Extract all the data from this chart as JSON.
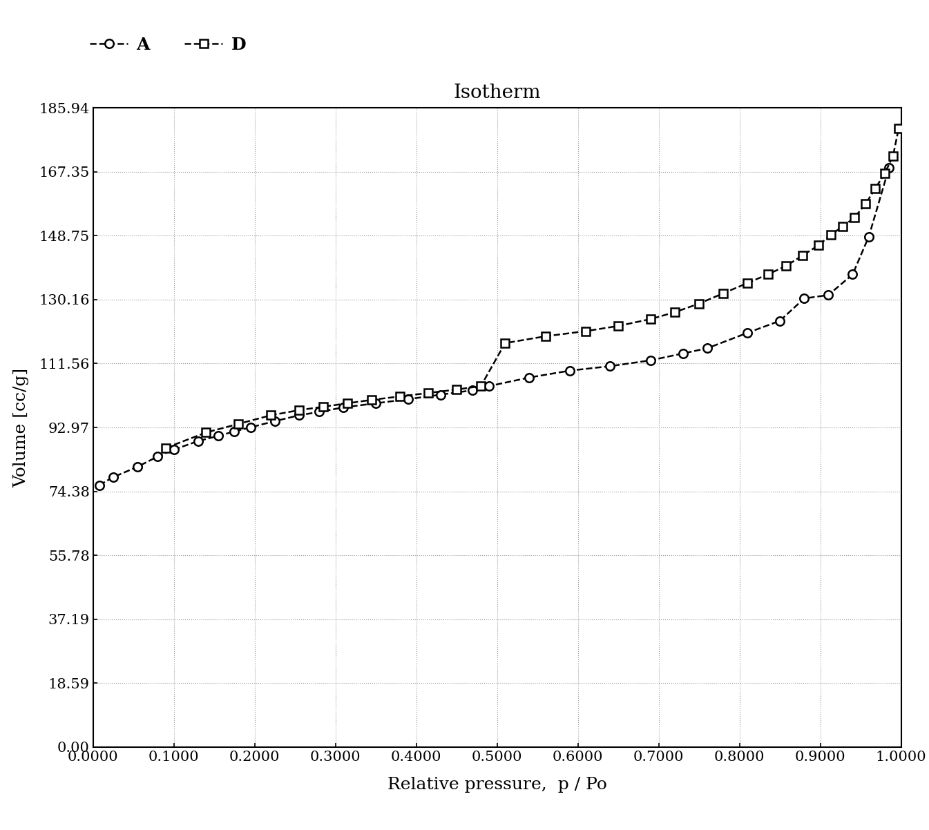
{
  "title": "Isotherm",
  "xlabel": "Relative pressure,  p / Po",
  "ylabel": "Volume [cc/g]",
  "yticks": [
    0.0,
    18.59,
    37.19,
    55.78,
    74.38,
    92.97,
    111.56,
    130.16,
    148.75,
    167.35,
    185.94
  ],
  "xticks": [
    0.0,
    0.1,
    0.2,
    0.3,
    0.4,
    0.5,
    0.6,
    0.7,
    0.8,
    0.9,
    1.0
  ],
  "xlim": [
    0.0,
    1.0
  ],
  "ylim": [
    0.0,
    185.94
  ],
  "adsorption_x": [
    0.008,
    0.025,
    0.055,
    0.08,
    0.1,
    0.13,
    0.155,
    0.175,
    0.195,
    0.225,
    0.255,
    0.28,
    0.31,
    0.35,
    0.39,
    0.43,
    0.47,
    0.49,
    0.54,
    0.59,
    0.64,
    0.69,
    0.73,
    0.76,
    0.81,
    0.85,
    0.88,
    0.91,
    0.94,
    0.96,
    0.985
  ],
  "adsorption_y": [
    76.2,
    78.5,
    81.5,
    84.5,
    86.5,
    89.0,
    90.5,
    91.8,
    93.0,
    94.8,
    96.5,
    97.5,
    98.8,
    100.0,
    101.2,
    102.5,
    103.8,
    105.0,
    107.5,
    109.5,
    110.8,
    112.5,
    114.5,
    116.0,
    120.5,
    124.0,
    130.5,
    131.5,
    137.5,
    148.5,
    168.5
  ],
  "desorption_x": [
    0.09,
    0.14,
    0.18,
    0.22,
    0.255,
    0.285,
    0.315,
    0.345,
    0.38,
    0.415,
    0.45,
    0.48,
    0.51,
    0.56,
    0.61,
    0.65,
    0.69,
    0.72,
    0.75,
    0.78,
    0.81,
    0.835,
    0.858,
    0.878,
    0.898,
    0.913,
    0.928,
    0.942,
    0.956,
    0.968,
    0.98,
    0.99,
    0.997
  ],
  "desorption_y": [
    87.0,
    91.5,
    94.0,
    96.5,
    98.0,
    99.0,
    100.0,
    101.0,
    102.0,
    103.0,
    104.0,
    105.0,
    117.5,
    119.5,
    121.0,
    122.5,
    124.5,
    126.5,
    129.0,
    132.0,
    135.0,
    137.5,
    140.0,
    143.0,
    146.0,
    149.0,
    151.5,
    154.0,
    158.0,
    162.5,
    167.0,
    172.0,
    180.0
  ],
  "line_color": "#000000",
  "adsorption_marker": "o",
  "desorption_marker": "s",
  "marker_size": 9,
  "marker_edge_width": 1.8,
  "line_width": 1.8,
  "legend_A": "A",
  "legend_D": "D",
  "title_fontsize": 20,
  "axis_label_fontsize": 18,
  "tick_fontsize": 15,
  "legend_fontsize": 18,
  "background_color": "#ffffff",
  "grid_color": "#999999",
  "grid_linestyle": ":",
  "grid_linewidth": 0.8
}
